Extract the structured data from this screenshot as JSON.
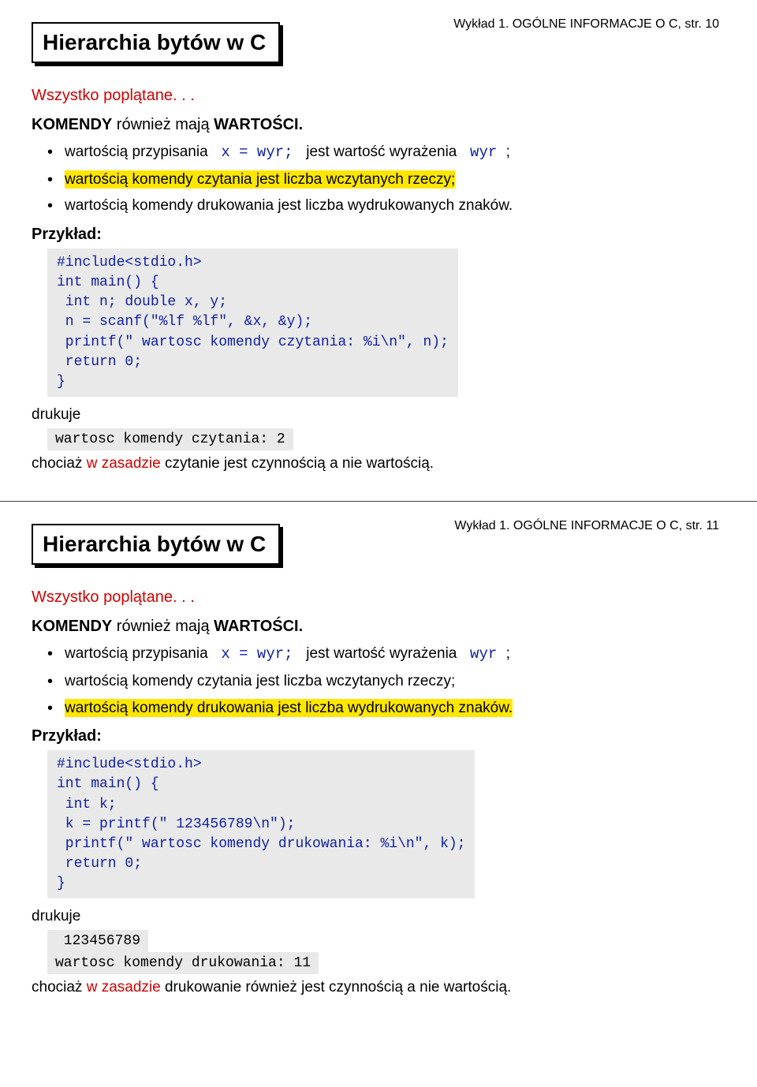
{
  "slide1": {
    "header": "Wykład 1. OGÓLNE INFORMACJE O C, str. 10",
    "title": "Hierarchia bytów w C",
    "subtitle": "Wszystko poplątane. . .",
    "komendy_prefix": "KOMENDY",
    "komendy_mid": " również mają ",
    "komendy_suffix": "WARTOŚCI.",
    "b1_pre": "wartością przypisania ",
    "b1_code1": " x = wyr; ",
    "b1_mid": " jest wartość wyrażenia ",
    "b1_code2": " wyr ",
    "b1_post": ";",
    "b2": "wartością komendy czytania jest liczba wczytanych rzeczy;",
    "b3": "wartością komendy drukowania jest liczba wydrukowanych znaków.",
    "przyklad": "Przykład:",
    "code": "#include<stdio.h>\nint main() {\n int n; double x, y;\n n = scanf(\"%lf %lf\", &x, &y);\n printf(\" wartosc komendy czytania: %i\\n\", n);\n return 0;\n}",
    "drukuje": "drukuje",
    "output": "wartosc komendy czytania: 2",
    "foot_pre": "chociaż ",
    "foot_red": "w zasadzie",
    "foot_post": " czytanie jest czynnością a nie wartością."
  },
  "slide2": {
    "header": "Wykład 1. OGÓLNE INFORMACJE O C, str. 11",
    "title": "Hierarchia bytów w C",
    "subtitle": "Wszystko poplątane. . .",
    "komendy_prefix": "KOMENDY",
    "komendy_mid": " również mają ",
    "komendy_suffix": "WARTOŚCI.",
    "b1_pre": "wartością przypisania ",
    "b1_code1": " x = wyr; ",
    "b1_mid": " jest wartość wyrażenia ",
    "b1_code2": " wyr ",
    "b1_post": ";",
    "b2": "wartością komendy czytania jest liczba wczytanych rzeczy;",
    "b3": "wartością komendy drukowania jest liczba wydrukowanych znaków.",
    "przyklad": "Przykład:",
    "code": "#include<stdio.h>\nint main() {\n int k;\n k = printf(\" 123456789\\n\");\n printf(\" wartosc komendy drukowania: %i\\n\", k);\n return 0;\n}",
    "drukuje": "drukuje",
    "output1": " 123456789",
    "output2": "wartosc komendy drukowania: 11",
    "foot_pre": "chociaż ",
    "foot_red": "w zasadzie",
    "foot_post": " drukowanie również jest czynnością a nie wartością."
  }
}
